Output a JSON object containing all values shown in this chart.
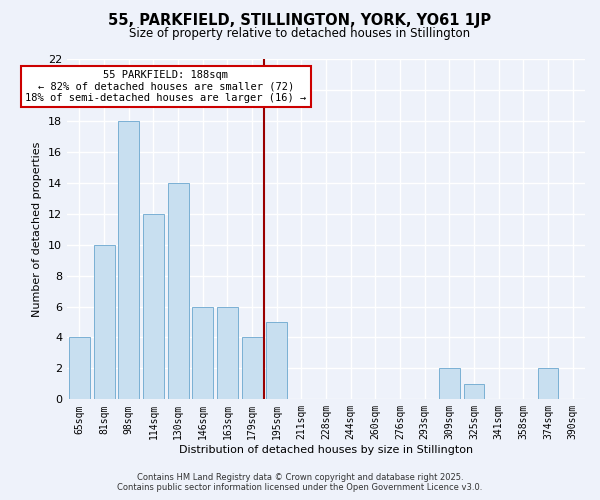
{
  "title": "55, PARKFIELD, STILLINGTON, YORK, YO61 1JP",
  "subtitle": "Size of property relative to detached houses in Stillington",
  "xlabel": "Distribution of detached houses by size in Stillington",
  "ylabel": "Number of detached properties",
  "bar_labels": [
    "65sqm",
    "81sqm",
    "98sqm",
    "114sqm",
    "130sqm",
    "146sqm",
    "163sqm",
    "179sqm",
    "195sqm",
    "211sqm",
    "228sqm",
    "244sqm",
    "260sqm",
    "276sqm",
    "293sqm",
    "309sqm",
    "325sqm",
    "341sqm",
    "358sqm",
    "374sqm",
    "390sqm"
  ],
  "bar_values": [
    4,
    10,
    18,
    12,
    14,
    6,
    6,
    4,
    5,
    0,
    0,
    0,
    0,
    0,
    0,
    2,
    1,
    0,
    0,
    2,
    0
  ],
  "bar_color": "#c8dff0",
  "bar_edge_color": "#7ab0d4",
  "background_color": "#eef2fa",
  "grid_color": "#ffffff",
  "vline_color": "#990000",
  "annotation_title": "55 PARKFIELD: 188sqm",
  "annotation_line1": "← 82% of detached houses are smaller (72)",
  "annotation_line2": "18% of semi-detached houses are larger (16) →",
  "annotation_box_color": "#ffffff",
  "annotation_box_edge": "#cc0000",
  "ylim": [
    0,
    22
  ],
  "yticks": [
    0,
    2,
    4,
    6,
    8,
    10,
    12,
    14,
    16,
    18,
    20,
    22
  ],
  "footer_line1": "Contains HM Land Registry data © Crown copyright and database right 2025.",
  "footer_line2": "Contains public sector information licensed under the Open Government Licence v3.0."
}
